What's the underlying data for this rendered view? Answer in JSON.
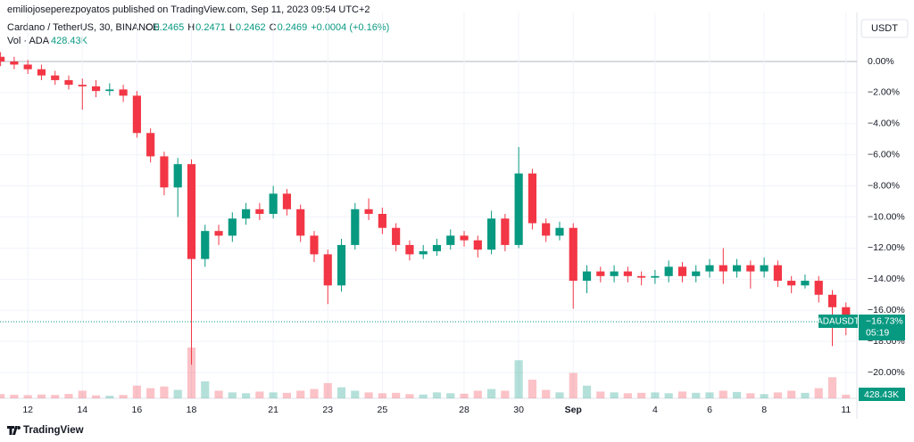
{
  "header": {
    "published": "emiliojoseperezpoyatos published on TradingView.com, Sep 11, 2023 09:54 UTC+2",
    "symbol": "Cardano / TetherUS, 30, BINANCE",
    "ohlc": [
      {
        "key": "O",
        "value": "0.2465"
      },
      {
        "key": "H",
        "value": "0.2471"
      },
      {
        "key": "L",
        "value": "0.2462"
      },
      {
        "key": "C",
        "value": "0.2469"
      }
    ],
    "change": "+0.0004 (+0.16%)",
    "volume_title": "Vol · ADA",
    "volume_value": "428.43K",
    "currency": "USDT",
    "brand": "TradingView"
  },
  "chart_data": {
    "type": "candlestick",
    "x": [
      -1,
      -0.5,
      0,
      0.5,
      1,
      1.5,
      2,
      2.5,
      3,
      3.5,
      4,
      4.5,
      5,
      5.5,
      6,
      6.5,
      7,
      7.5,
      8,
      8.5,
      9,
      9.5,
      10,
      10.5,
      11,
      11.5,
      12,
      12.5,
      13,
      13.5,
      14,
      14.5,
      15,
      15.5,
      16,
      16.5,
      17,
      17.5,
      18,
      18.5,
      19,
      19.5,
      20,
      20.5,
      21,
      21.5,
      22,
      22.5,
      23,
      23.5,
      24,
      24.5,
      25,
      25.5,
      26,
      26.5,
      27,
      27.5,
      28,
      28.5,
      29,
      29.5,
      30
    ],
    "open": [
      0.3,
      0.0,
      -0.2,
      -0.5,
      -0.9,
      -1.2,
      -1.5,
      -1.6,
      -1.9,
      -1.8,
      -2.2,
      -4.6,
      -6.1,
      -8.1,
      -6.6,
      -12.7,
      -10.9,
      -11.2,
      -10.1,
      -9.5,
      -9.8,
      -8.5,
      -9.5,
      -11.2,
      -12.4,
      -14.4,
      -11.8,
      -9.5,
      -9.8,
      -10.7,
      -11.8,
      -12.4,
      -12.2,
      -11.8,
      -11.2,
      -11.5,
      -12.1,
      -10.1,
      -11.8,
      -7.2,
      -10.4,
      -11.2,
      -10.7,
      -14.1,
      -13.5,
      -13.8,
      -13.5,
      -13.8,
      -13.9,
      -13.8,
      -13.2,
      -13.8,
      -13.5,
      -13.1,
      -13.5,
      -13.1,
      -13.5,
      -13.1,
      -14.1,
      -14.4,
      -14.1,
      -15.0,
      -15.8
    ],
    "high": [
      0.6,
      0.3,
      0.1,
      -0.2,
      -0.6,
      -0.9,
      -1.1,
      -1.2,
      -1.4,
      -1.5,
      -1.9,
      -4.3,
      -5.8,
      -6.2,
      -6.3,
      -10.5,
      -10.5,
      -9.7,
      -9.1,
      -9.1,
      -8.0,
      -8.2,
      -9.2,
      -10.9,
      -12.1,
      -11.4,
      -9.1,
      -8.8,
      -9.4,
      -10.4,
      -11.5,
      -11.8,
      -11.4,
      -10.8,
      -10.9,
      -11.2,
      -9.6,
      -9.8,
      -5.5,
      -6.9,
      -10.1,
      -10.3,
      -10.4,
      -13.1,
      -13.2,
      -13.1,
      -13.2,
      -13.5,
      -13.4,
      -12.8,
      -12.9,
      -13.1,
      -12.7,
      -12.0,
      -12.7,
      -12.8,
      -12.6,
      -12.8,
      -13.8,
      -13.7,
      -13.8,
      -14.7,
      -15.5
    ],
    "low": [
      -0.3,
      -0.5,
      -0.8,
      -1.2,
      -1.5,
      -1.8,
      -3.1,
      -2.3,
      -2.2,
      -2.6,
      -4.9,
      -6.5,
      -8.6,
      -10.0,
      -19.5,
      -13.2,
      -11.8,
      -11.6,
      -10.5,
      -10.2,
      -10.1,
      -9.9,
      -11.6,
      -12.9,
      -15.6,
      -14.8,
      -12.1,
      -10.2,
      -11.1,
      -12.2,
      -12.8,
      -12.7,
      -12.5,
      -12.1,
      -11.9,
      -12.6,
      -12.4,
      -12.2,
      -12.0,
      -10.8,
      -11.6,
      -11.5,
      -15.9,
      -14.9,
      -14.2,
      -14.2,
      -14.2,
      -14.4,
      -14.3,
      -14.2,
      -14.2,
      -14.2,
      -13.9,
      -14.3,
      -13.9,
      -14.6,
      -13.9,
      -14.5,
      -14.9,
      -14.6,
      -15.5,
      -18.3,
      -17.6
    ],
    "close": [
      0.0,
      -0.2,
      -0.5,
      -0.9,
      -1.2,
      -1.5,
      -1.6,
      -1.9,
      -1.8,
      -2.2,
      -4.6,
      -6.1,
      -8.1,
      -6.6,
      -12.7,
      -10.9,
      -11.2,
      -10.1,
      -9.5,
      -9.8,
      -8.5,
      -9.5,
      -11.2,
      -12.4,
      -14.4,
      -11.8,
      -9.5,
      -9.8,
      -10.7,
      -11.8,
      -12.4,
      -12.2,
      -11.8,
      -11.2,
      -11.5,
      -12.1,
      -10.1,
      -11.8,
      -7.2,
      -10.4,
      -11.2,
      -10.7,
      -14.1,
      -13.5,
      -13.8,
      -13.5,
      -13.8,
      -13.9,
      -13.8,
      -13.2,
      -13.8,
      -13.5,
      -13.1,
      -13.5,
      -13.1,
      -13.5,
      -13.1,
      -14.1,
      -14.4,
      -14.1,
      -15.0,
      -15.8,
      -16.73
    ],
    "volume": [
      500,
      420,
      380,
      450,
      400,
      520,
      900,
      350,
      300,
      400,
      1500,
      1200,
      1400,
      1000,
      6000,
      2000,
      900,
      700,
      600,
      800,
      700,
      650,
      900,
      1100,
      1800,
      1300,
      900,
      700,
      600,
      650,
      500,
      450,
      700,
      600,
      550,
      900,
      1100,
      900,
      4500,
      2200,
      1000,
      700,
      3000,
      1500,
      800,
      700,
      600,
      650,
      700,
      600,
      800,
      650,
      700,
      900,
      750,
      600,
      500,
      700,
      900,
      650,
      1200,
      2500,
      428.43
    ],
    "last": {
      "symbol": "ADAUSDT",
      "label": "−16.73%",
      "countdown": "05:19",
      "volume_label": "428.43K"
    },
    "up_color": "#089981",
    "down_color": "#f23645",
    "xlim": [
      -1.02,
      30.4
    ],
    "ylim": [
      -21.66,
      3.15
    ],
    "xticks": [
      {
        "value": 0,
        "label": "12"
      },
      {
        "value": 2,
        "label": "14"
      },
      {
        "value": 4,
        "label": "16"
      },
      {
        "value": 6,
        "label": "18"
      },
      {
        "value": 9,
        "label": "21"
      },
      {
        "value": 11,
        "label": "23"
      },
      {
        "value": 13,
        "label": "25"
      },
      {
        "value": 16,
        "label": "28"
      },
      {
        "value": 18,
        "label": "30"
      },
      {
        "value": 20,
        "label": "Sep"
      },
      {
        "value": 23,
        "label": "4"
      },
      {
        "value": 25,
        "label": "6"
      },
      {
        "value": 27,
        "label": "8"
      },
      {
        "value": 30,
        "label": "11"
      }
    ],
    "yticks": [
      {
        "value": 0,
        "label": "0.00%"
      },
      {
        "value": -2,
        "label": "−2.00%"
      },
      {
        "value": -4,
        "label": "−4.00%"
      },
      {
        "value": -6,
        "label": "−6.00%"
      },
      {
        "value": -8,
        "label": "−8.00%"
      },
      {
        "value": -10,
        "label": "−10.00%"
      },
      {
        "value": -12,
        "label": "−12.00%"
      },
      {
        "value": -14,
        "label": "−14.00%"
      },
      {
        "value": -16,
        "label": "−16.00%"
      },
      {
        "value": -18,
        "label": "−18.00%"
      },
      {
        "value": -20,
        "label": "−20.00%"
      }
    ],
    "grid": true
  }
}
